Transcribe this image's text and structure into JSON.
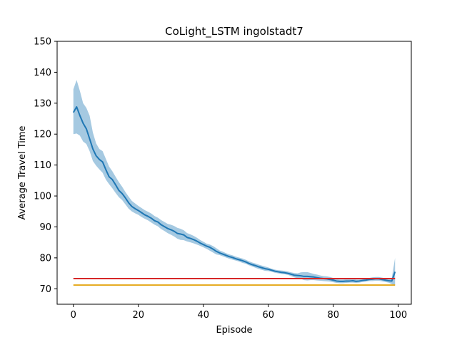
{
  "chart_data": {
    "type": "line",
    "title": "CoLight_LSTM ingolstadt7",
    "xlabel": "Episode",
    "ylabel": "Average Travel Time",
    "xlim": [
      -5,
      104
    ],
    "ylim": [
      65,
      150
    ],
    "xticks": [
      0,
      20,
      40,
      60,
      80,
      100
    ],
    "yticks": [
      70,
      80,
      90,
      100,
      110,
      120,
      130,
      140,
      150
    ],
    "grid": false,
    "legend": "none",
    "series": [
      {
        "kind": "mean_with_band",
        "color": "#1f77b4",
        "band_color": "#1f77b4",
        "x": [
          0,
          1,
          2,
          3,
          4,
          5,
          6,
          7,
          8,
          9,
          10,
          11,
          12,
          13,
          14,
          15,
          16,
          17,
          18,
          19,
          20,
          21,
          22,
          23,
          24,
          25,
          26,
          27,
          28,
          29,
          30,
          31,
          32,
          33,
          34,
          35,
          36,
          37,
          38,
          39,
          40,
          41,
          42,
          43,
          44,
          45,
          46,
          47,
          48,
          49,
          50,
          51,
          52,
          53,
          54,
          55,
          56,
          57,
          58,
          59,
          60,
          61,
          62,
          63,
          64,
          65,
          66,
          67,
          68,
          69,
          70,
          71,
          72,
          73,
          74,
          75,
          76,
          77,
          78,
          79,
          80,
          81,
          82,
          83,
          84,
          85,
          86,
          87,
          88,
          89,
          90,
          91,
          92,
          93,
          94,
          95,
          96,
          97,
          98,
          99
        ],
        "mean": [
          127.0,
          128.8,
          126.0,
          123.5,
          121.7,
          118.5,
          115.2,
          113.0,
          111.8,
          111.0,
          108.5,
          106.2,
          105.3,
          103.6,
          101.8,
          100.8,
          99.4,
          97.8,
          96.6,
          95.9,
          95.3,
          94.6,
          93.9,
          93.4,
          92.8,
          92.0,
          91.6,
          90.7,
          90.1,
          89.5,
          89.1,
          88.6,
          87.9,
          87.7,
          87.4,
          86.6,
          86.3,
          85.9,
          85.4,
          84.8,
          84.3,
          83.8,
          83.4,
          82.8,
          82.1,
          81.6,
          81.2,
          80.8,
          80.4,
          80.1,
          79.7,
          79.4,
          79.1,
          78.7,
          78.2,
          77.8,
          77.5,
          77.1,
          76.8,
          76.5,
          76.3,
          76.0,
          75.7,
          75.5,
          75.3,
          75.2,
          75.0,
          74.7,
          74.4,
          74.3,
          74.2,
          74.0,
          74.0,
          73.9,
          73.8,
          73.6,
          73.4,
          73.3,
          73.2,
          73.0,
          72.8,
          72.5,
          72.4,
          72.4,
          72.5,
          72.5,
          72.6,
          72.4,
          72.5,
          72.7,
          72.8,
          73.0,
          73.1,
          73.2,
          73.2,
          73.0,
          72.8,
          72.6,
          72.5,
          75.5
        ],
        "lower": [
          120.0,
          120.2,
          119.5,
          117.6,
          116.8,
          114.5,
          111.3,
          109.8,
          108.6,
          107.5,
          105.3,
          103.8,
          102.5,
          101.0,
          99.6,
          98.7,
          97.3,
          95.9,
          95.0,
          94.4,
          93.9,
          93.2,
          92.6,
          92.1,
          91.4,
          90.7,
          90.2,
          89.3,
          88.7,
          88.0,
          87.5,
          86.9,
          86.2,
          85.8,
          85.7,
          85.3,
          85.0,
          84.7,
          84.3,
          83.9,
          83.4,
          82.9,
          82.3,
          81.7,
          81.1,
          80.9,
          80.5,
          80.1,
          79.7,
          79.4,
          79.1,
          78.8,
          78.4,
          78.1,
          77.6,
          77.2,
          76.8,
          76.4,
          76.1,
          75.8,
          75.7,
          75.5,
          75.2,
          75.0,
          74.8,
          74.7,
          74.5,
          74.1,
          73.7,
          73.4,
          73.2,
          72.8,
          72.7,
          72.8,
          72.8,
          72.7,
          72.6,
          72.5,
          72.4,
          72.3,
          72.1,
          71.9,
          71.8,
          71.8,
          71.9,
          72.0,
          72.0,
          71.9,
          72.0,
          72.2,
          72.3,
          72.5,
          72.5,
          72.6,
          72.6,
          72.4,
          72.2,
          72.0,
          71.5,
          71.2
        ],
        "upper": [
          134.5,
          137.5,
          134.0,
          130.0,
          128.5,
          126.0,
          120.5,
          117.0,
          115.2,
          114.5,
          112.0,
          109.5,
          108.0,
          106.2,
          104.5,
          103.0,
          101.3,
          99.8,
          98.4,
          97.6,
          96.8,
          96.1,
          95.4,
          94.9,
          94.3,
          93.5,
          93.0,
          92.2,
          91.6,
          91.0,
          90.7,
          90.3,
          89.7,
          89.4,
          88.9,
          88.0,
          87.6,
          87.1,
          86.5,
          85.8,
          85.2,
          84.6,
          84.3,
          83.8,
          83.1,
          82.4,
          82.0,
          81.5,
          81.1,
          80.8,
          80.4,
          80.1,
          79.8,
          79.4,
          78.9,
          78.5,
          78.2,
          77.8,
          77.5,
          77.2,
          76.9,
          76.5,
          76.2,
          76.0,
          75.9,
          75.8,
          75.6,
          75.3,
          75.1,
          75.0,
          75.3,
          75.4,
          75.4,
          75.1,
          74.8,
          74.6,
          74.3,
          74.1,
          74.0,
          73.8,
          73.5,
          73.1,
          73.0,
          73.0,
          73.1,
          73.1,
          73.2,
          73.0,
          73.0,
          73.2,
          73.3,
          73.5,
          73.7,
          73.8,
          73.8,
          73.6,
          73.4,
          73.3,
          73.5,
          80.0
        ]
      },
      {
        "kind": "hline",
        "color": "#d62728",
        "x": [
          0,
          99
        ],
        "y": 73.3
      },
      {
        "kind": "hline",
        "color": "#e5a81a",
        "x": [
          0,
          99
        ],
        "y": 71.2
      }
    ]
  }
}
